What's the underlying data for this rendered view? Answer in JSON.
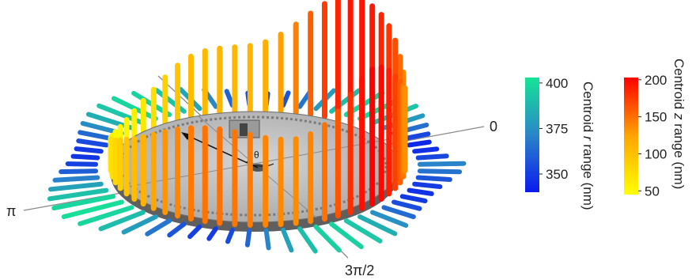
{
  "chart_data": {
    "type": "polar-3d-bar",
    "angle_labels": {
      "zero": "0",
      "pi": "π",
      "three_pi_over_two": "3π/2",
      "theta": "θ"
    },
    "colorbar_r": {
      "label": "Centroid r range (nm)",
      "label_parts": [
        "Centroid ",
        "r",
        " range (nm)"
      ],
      "ticks": [
        350,
        375,
        400
      ],
      "range": [
        340,
        403
      ],
      "colors": [
        "#0a1aee",
        "#2a86c8",
        "#16e496"
      ]
    },
    "colorbar_z": {
      "label": "Centroid z range (nm)",
      "label_parts": [
        "Centroid ",
        "z",
        " range (nm)"
      ],
      "ticks": [
        50,
        100,
        150,
        200
      ],
      "range": [
        45,
        203
      ],
      "colors": [
        "#ffff00",
        "#ffa500",
        "#ff0000"
      ]
    },
    "n_bins": 60,
    "r_values": [
      371,
      353,
      346,
      344,
      353,
      365,
      378,
      392,
      400,
      398,
      390,
      378,
      366,
      357,
      352,
      354,
      362,
      372,
      382,
      391,
      397,
      398,
      393,
      385,
      374,
      363,
      354,
      349,
      348,
      352,
      360,
      370,
      381,
      391,
      398,
      401,
      398,
      390,
      379,
      367,
      357,
      351,
      350,
      354,
      362,
      371,
      381,
      390,
      396,
      397,
      393,
      385,
      375,
      364,
      355,
      349,
      347,
      350,
      357,
      366
    ],
    "z_values": [
      124,
      139,
      152,
      166,
      178,
      186,
      191,
      194,
      193,
      186,
      174,
      158,
      141,
      126,
      115,
      110,
      109,
      109,
      108,
      104,
      96,
      85,
      74,
      65,
      58,
      53,
      51,
      52,
      55,
      60,
      66,
      73,
      80,
      88,
      96,
      104,
      113,
      122,
      131,
      139,
      145,
      148,
      149,
      147,
      144,
      140,
      137,
      136,
      140,
      149,
      163,
      181,
      196,
      203,
      199,
      188,
      173,
      158,
      145,
      134
    ]
  }
}
